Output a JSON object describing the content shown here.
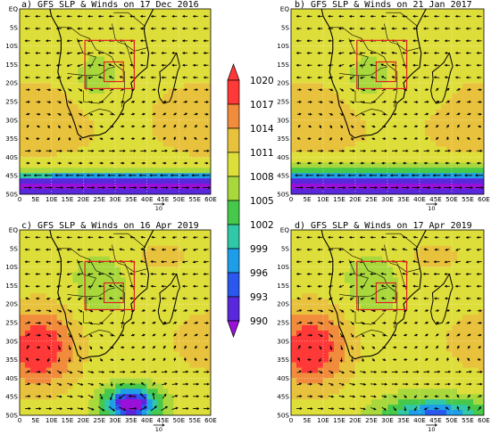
{
  "panels": [
    {
      "title": "a) GFS SLP & Winds on 17 Dec 2016",
      "mode": "a"
    },
    {
      "title": "b) GFS SLP & Winds on 21 Jan 2017",
      "mode": "b"
    },
    {
      "title": "c) GFS SLP & Winds on 16 Apr 2019",
      "mode": "c"
    },
    {
      "title": "d) GFS SLP & Winds on 17 Apr 2019",
      "mode": "d"
    }
  ],
  "lat_labels": [
    "EQ",
    "5S",
    "10S",
    "15S",
    "20S",
    "25S",
    "30S",
    "35S",
    "40S",
    "45S",
    "50S"
  ],
  "lon_labels": [
    "0",
    "5E",
    "10E",
    "15E",
    "20E",
    "25E",
    "30E",
    "35E",
    "40E",
    "45E",
    "50E",
    "55E",
    "60E"
  ],
  "reference_vector": "10",
  "colorbar": {
    "labels": [
      "1020",
      "1017",
      "1014",
      "1011",
      "1008",
      "1005",
      "1002",
      "999",
      "996",
      "993",
      "990"
    ],
    "colors": [
      "#ff3838",
      "#f08c3c",
      "#e8c23c",
      "#dede3a",
      "#a8d83c",
      "#46c84a",
      "#30c8a6",
      "#1e9ee8",
      "#2a58ee",
      "#5a28dc",
      "#9a10d8"
    ]
  }
}
